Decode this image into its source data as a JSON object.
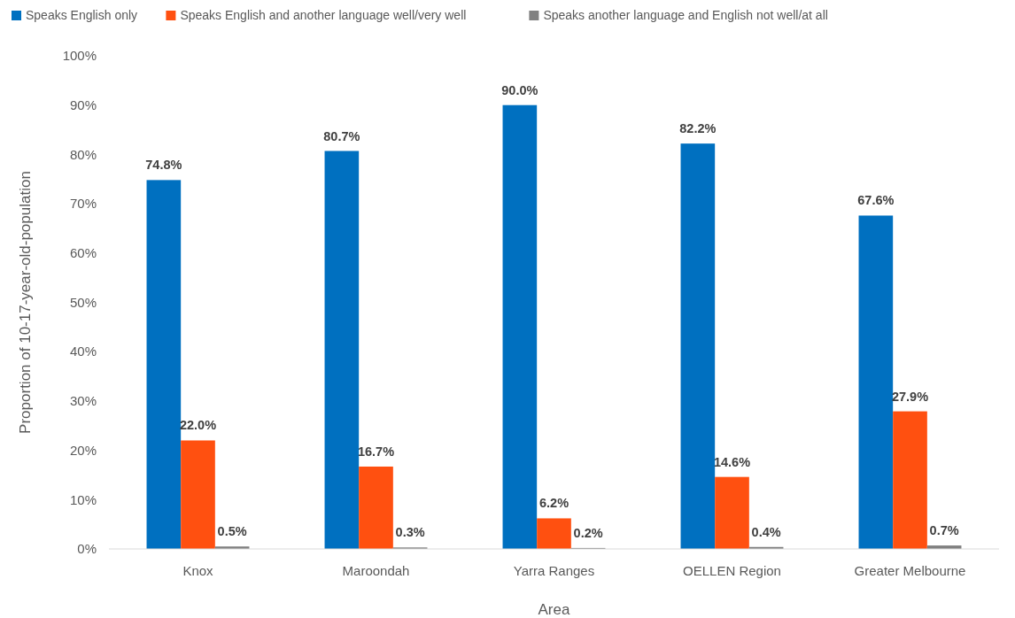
{
  "chart_data": {
    "type": "bar",
    "xlabel": "Area",
    "ylabel": "Proportion of 10-17-year-old-population",
    "categories": [
      "Knox",
      "Maroondah",
      "Yarra Ranges",
      "OELLEN Region",
      "Greater Melbourne"
    ],
    "series": [
      {
        "name": "Speaks English only",
        "color": "#0070c0",
        "values": [
          74.8,
          80.7,
          90.0,
          82.2,
          67.6
        ],
        "value_labels": [
          "74.8%",
          "80.7%",
          "90.0%",
          "82.2%",
          "67.6%"
        ]
      },
      {
        "name": "Speaks English and another language well/very well",
        "color": "#ff5010",
        "values": [
          22.0,
          16.7,
          6.2,
          14.6,
          27.9
        ],
        "value_labels": [
          "22.0%",
          "16.7%",
          "6.2%",
          "14.6%",
          "27.9%"
        ]
      },
      {
        "name": "Speaks another language and English not well/at all",
        "color": "#808080",
        "values": [
          0.5,
          0.3,
          0.2,
          0.4,
          0.7
        ],
        "value_labels": [
          "0.5%",
          "0.3%",
          "0.2%",
          "0.4%",
          "0.7%"
        ]
      }
    ],
    "ylim": [
      0,
      100
    ],
    "yticks": [
      {
        "value": 0,
        "label": "0%"
      },
      {
        "value": 10,
        "label": "10%"
      },
      {
        "value": 20,
        "label": "20%"
      },
      {
        "value": 30,
        "label": "30%"
      },
      {
        "value": 40,
        "label": "40%"
      },
      {
        "value": 50,
        "label": "50%"
      },
      {
        "value": 60,
        "label": "60%"
      },
      {
        "value": 70,
        "label": "70%"
      },
      {
        "value": 80,
        "label": "80%"
      },
      {
        "value": 90,
        "label": "90%"
      },
      {
        "value": 100,
        "label": "100%"
      }
    ],
    "grid": false,
    "legend": "top left"
  }
}
